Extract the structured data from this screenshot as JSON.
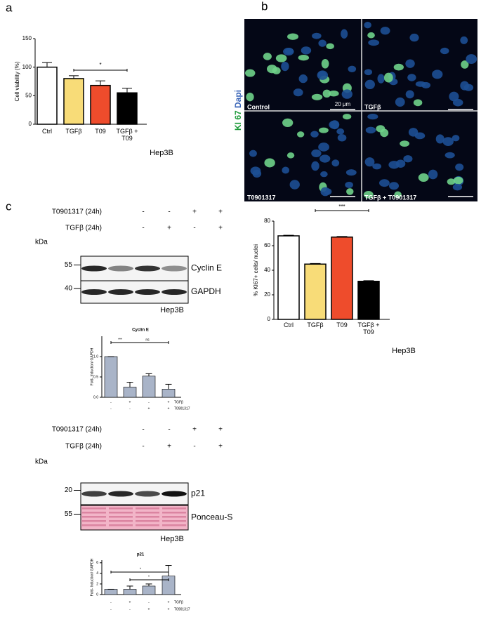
{
  "panels": [
    "a",
    "b",
    "c"
  ],
  "microscopy": {
    "stain_label": "KI 67",
    "counter_label": "Dapi",
    "quadrants": [
      "Control",
      "TGFβ",
      "T0901317",
      "TGFβ + T0901317"
    ],
    "scale_label": "20 μm"
  },
  "blots": [
    {
      "conditions": [
        {
          "name": "T0901317 (24h)",
          "signs": [
            "-",
            "-",
            "+",
            "+"
          ]
        },
        {
          "name": "TGFβ (24h)",
          "signs": [
            "-",
            "+",
            "-",
            "+"
          ]
        }
      ],
      "kda_label": "kDa",
      "bands": [
        {
          "name": "Cyclin E",
          "marker": "55"
        },
        {
          "name": "GAPDH",
          "marker": "40"
        }
      ],
      "cell_line": "Hep3B"
    },
    {
      "conditions": [
        {
          "name": "T0901317 (24h)",
          "signs": [
            "-",
            "-",
            "+",
            "+"
          ]
        },
        {
          "name": "TGFβ (24h)",
          "signs": [
            "-",
            "+",
            "-",
            "+"
          ]
        }
      ],
      "kda_label": "kDa",
      "bands": [
        {
          "name": "p21",
          "marker": "20"
        },
        {
          "name": "Ponceau-S",
          "marker": "55"
        }
      ],
      "cell_line": "Hep3B"
    }
  ],
  "chart_data": [
    {
      "type": "bar",
      "ylabel": "Cell viability (%)",
      "categories": [
        "Ctrl",
        "TGFβ",
        "T09",
        "TGFβ + T09"
      ],
      "values": [
        100,
        80,
        68,
        55
      ],
      "errors": [
        8,
        5,
        8,
        8
      ],
      "colors": [
        "#ffffff",
        "#f8dc78",
        "#ee4c2c",
        "#000000"
      ],
      "ylim": [
        0,
        150
      ],
      "yticks": [
        0,
        50,
        100,
        150
      ],
      "annotations": [
        "*"
      ],
      "cell_line": "Hep3B"
    },
    {
      "type": "bar",
      "ylabel": "% KI67+ cells/ nuclei",
      "categories": [
        "Ctrl",
        "TGFβ",
        "T09",
        "TGFβ + T09"
      ],
      "values": [
        68,
        45,
        67,
        31
      ],
      "errors": [
        0.5,
        0.5,
        0.5,
        0.5
      ],
      "colors": [
        "#ffffff",
        "#f8dc78",
        "#ee4c2c",
        "#000000"
      ],
      "ylim": [
        0,
        80
      ],
      "yticks": [
        0,
        20,
        40,
        60,
        80
      ],
      "annotations": [
        "***"
      ],
      "cell_line": "Hep3B"
    },
    {
      "type": "bar",
      "title": "Cyclin E",
      "ylabel": "Fold- Induction/ GAPDH",
      "values": [
        1.0,
        0.25,
        0.52,
        0.2
      ],
      "errors": [
        0,
        0.12,
        0.06,
        0.12
      ],
      "colors": [
        "#a9b4c8",
        "#a9b4c8",
        "#a9b4c8",
        "#a9b4c8"
      ],
      "ylim": [
        0,
        1.5
      ],
      "yticks": [
        {
          "value": 0,
          "label": "0.0"
        },
        {
          "value": 0.5,
          "label": "0.5"
        },
        {
          "value": 1,
          "label": "1.0"
        }
      ],
      "annotations": [
        "***",
        "ns"
      ],
      "conditions": [
        {
          "name": "TGFβ",
          "signs": [
            "-",
            "+",
            "-",
            "+"
          ]
        },
        {
          "name": "T0901317",
          "signs": [
            "-",
            "-",
            "+",
            "+"
          ]
        }
      ]
    },
    {
      "type": "bar",
      "title": "p21",
      "ylabel": "Fold- Induction/ GAPDH",
      "values": [
        1,
        1,
        1.6,
        3.5
      ],
      "errors": [
        0,
        0.6,
        0.4,
        2
      ],
      "colors": [
        "#a9b4c8",
        "#a9b4c8",
        "#a9b4c8",
        "#a9b4c8"
      ],
      "ylim": [
        0,
        6.5
      ],
      "yticks": [
        0,
        2,
        4,
        6
      ],
      "annotations": [
        "*",
        "*"
      ],
      "conditions": [
        {
          "name": "TGFβ",
          "signs": [
            "-",
            "+",
            "-",
            "+"
          ]
        },
        {
          "name": "T0901317",
          "signs": [
            "-",
            "-",
            "+",
            "+"
          ]
        }
      ]
    }
  ]
}
